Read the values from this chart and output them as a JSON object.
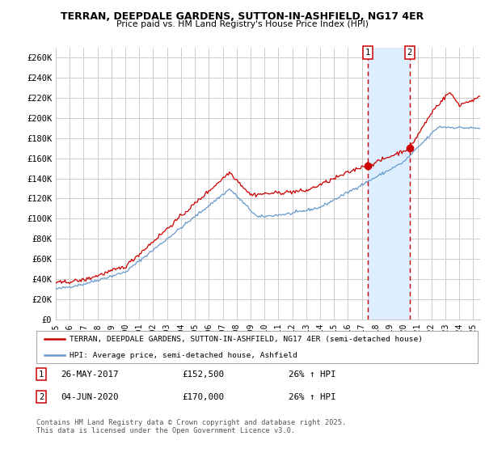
{
  "title": "TERRAN, DEEPDALE GARDENS, SUTTON-IN-ASHFIELD, NG17 4ER",
  "subtitle": "Price paid vs. HM Land Registry's House Price Index (HPI)",
  "ylabel_ticks": [
    "£0",
    "£20K",
    "£40K",
    "£60K",
    "£80K",
    "£100K",
    "£120K",
    "£140K",
    "£160K",
    "£180K",
    "£200K",
    "£220K",
    "£240K",
    "£260K"
  ],
  "ytick_values": [
    0,
    20000,
    40000,
    60000,
    80000,
    100000,
    120000,
    140000,
    160000,
    180000,
    200000,
    220000,
    240000,
    260000
  ],
  "ylim": [
    0,
    270000
  ],
  "xlim_start": 1995.0,
  "xlim_end": 2025.5,
  "red_line_color": "#cc0000",
  "blue_line_color": "#6699cc",
  "shade_color": "#ddeeff",
  "marker1_x": 2017.42,
  "marker1_y": 152500,
  "marker2_x": 2020.42,
  "marker2_y": 170000,
  "marker1_label": "26-MAY-2017",
  "marker1_price": "£152,500",
  "marker1_hpi": "26% ↑ HPI",
  "marker2_label": "04-JUN-2020",
  "marker2_price": "£170,000",
  "marker2_hpi": "26% ↑ HPI",
  "legend_red": "TERRAN, DEEPDALE GARDENS, SUTTON-IN-ASHFIELD, NG17 4ER (semi-detached house)",
  "legend_blue": "HPI: Average price, semi-detached house, Ashfield",
  "footer": "Contains HM Land Registry data © Crown copyright and database right 2025.\nThis data is licensed under the Open Government Licence v3.0.",
  "grid_color": "#cccccc",
  "background_color": "#ffffff"
}
